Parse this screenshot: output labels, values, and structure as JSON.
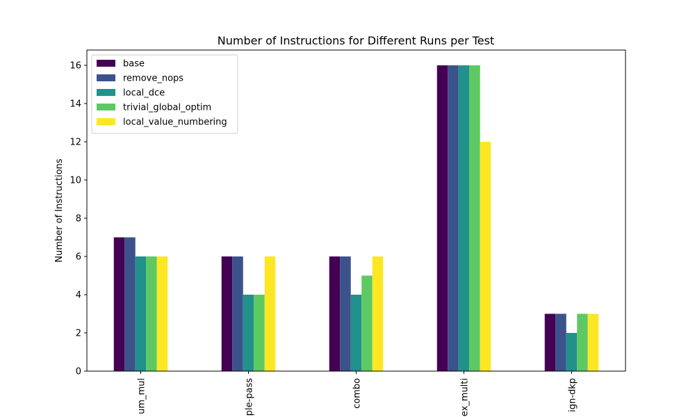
{
  "chart_data": {
    "type": "bar",
    "title": "Number of Instructions for Different Runs per Test",
    "xlabel": "",
    "ylabel": "Number of Instructions",
    "categories": [
      "um_mul",
      "ple-pass",
      "combo",
      "ex_multi",
      "ign-dkp"
    ],
    "ylim": [
      0,
      16.8
    ],
    "yticks": [
      0,
      2,
      4,
      6,
      8,
      10,
      12,
      14,
      16
    ],
    "grid": false,
    "legend_position": "upper-left",
    "series": [
      {
        "name": "base",
        "color": "#440154",
        "values": [
          7,
          6,
          6,
          16,
          3
        ]
      },
      {
        "name": "remove_nops",
        "color": "#3b528b",
        "values": [
          7,
          6,
          6,
          16,
          3
        ]
      },
      {
        "name": "local_dce",
        "color": "#21918c",
        "values": [
          6,
          4,
          4,
          16,
          2
        ]
      },
      {
        "name": "trivial_global_optim",
        "color": "#5ec962",
        "values": [
          6,
          4,
          5,
          16,
          3
        ]
      },
      {
        "name": "local_value_numbering",
        "color": "#fde725",
        "values": [
          6,
          6,
          6,
          12,
          3
        ]
      }
    ]
  }
}
